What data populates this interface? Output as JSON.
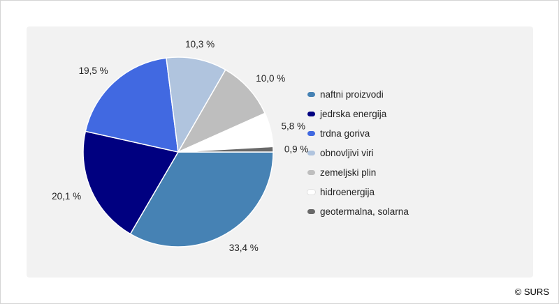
{
  "chart_data": {
    "type": "pie",
    "slices": [
      {
        "label": "naftni proizvodi",
        "value": 33.4,
        "value_label": "33,4 %",
        "color": "#4682b4"
      },
      {
        "label": "jedrska energija",
        "value": 20.1,
        "value_label": "20,1 %",
        "color": "#000080"
      },
      {
        "label": "trdna goriva",
        "value": 19.5,
        "value_label": "19,5 %",
        "color": "#4169e1"
      },
      {
        "label": "obnovljivi viri",
        "value": 10.3,
        "value_label": "10,3 %",
        "color": "#b0c4de"
      },
      {
        "label": "zemeljski plin",
        "value": 10.0,
        "value_label": "10,0 %",
        "color": "#bebebe"
      },
      {
        "label": "hidroenergija",
        "value": 5.8,
        "value_label": "5,8 %",
        "color": "#ffffff"
      },
      {
        "label": "geotermalna, solarna",
        "value": 0.9,
        "value_label": "0,9 %",
        "color": "#696969"
      }
    ],
    "legend_position": "right"
  },
  "copyright": "© SURS"
}
